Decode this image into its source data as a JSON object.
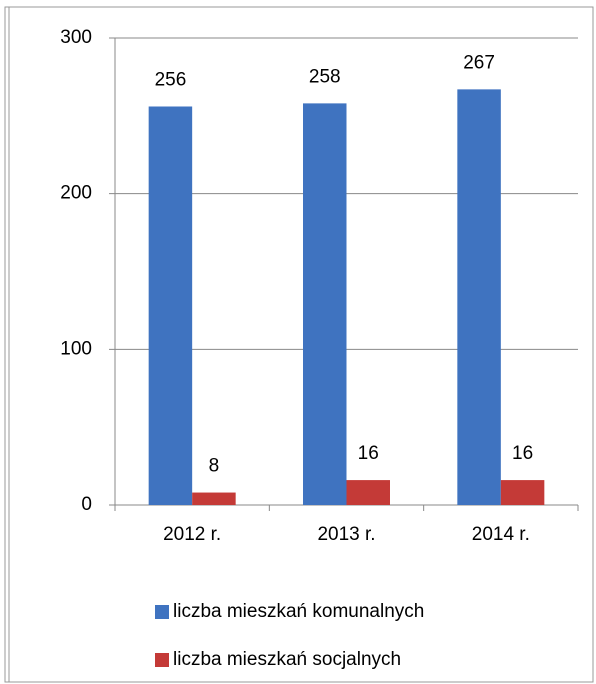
{
  "chart_data": {
    "type": "bar",
    "categories": [
      "2012 r.",
      "2013 r.",
      "2014 r."
    ],
    "series": [
      {
        "name": "liczba mieszkań komunalnych",
        "color": "#3f73c0",
        "values": [
          256,
          258,
          267
        ]
      },
      {
        "name": "liczba mieszkań socjalnych",
        "color": "#c43a37",
        "values": [
          8,
          16,
          16
        ]
      }
    ],
    "ylim": [
      0,
      300
    ],
    "yticks": [
      0,
      100,
      200,
      300
    ],
    "grid": true,
    "legend": "bottom"
  }
}
